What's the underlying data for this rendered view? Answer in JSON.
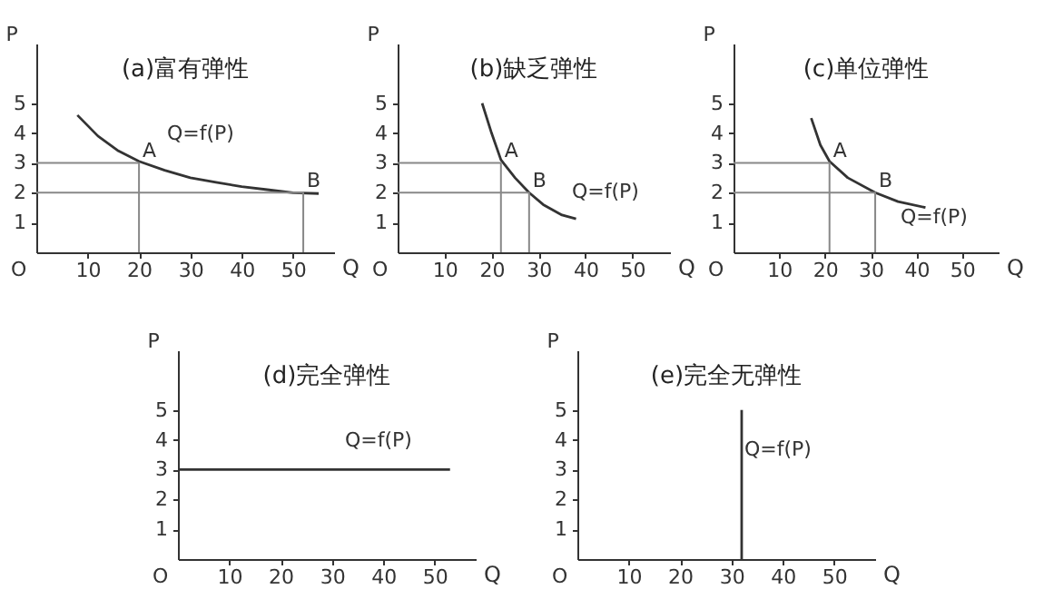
{
  "chart_data": [
    {
      "type": "line",
      "title": "(a)富有弹性",
      "xlabel": "Q",
      "ylabel": "P",
      "xlim": [
        0,
        58
      ],
      "ylim": [
        0,
        7
      ],
      "xticks": [
        10,
        20,
        30,
        40,
        50
      ],
      "yticks": [
        1,
        2,
        3,
        4,
        5
      ],
      "grid": false,
      "series": [
        {
          "color": "#333333",
          "x": [
            8,
            12,
            16,
            20,
            25,
            30,
            35,
            40,
            45,
            50,
            55
          ],
          "values": [
            4.6,
            3.9,
            3.4,
            3.05,
            2.75,
            2.5,
            2.35,
            2.2,
            2.1,
            2.0,
            1.97
          ]
        },
        {
          "color": "#888888",
          "x": [
            0,
            20,
            20
          ],
          "values": [
            3,
            3,
            0
          ]
        },
        {
          "color": "#888888",
          "x": [
            0,
            52,
            52
          ],
          "values": [
            2,
            2,
            0
          ]
        }
      ],
      "annotations": [
        {
          "text": "A",
          "x": 20,
          "y": 3
        },
        {
          "text": "B",
          "x": 52,
          "y": 2
        },
        "Q=f(P)",
        "O"
      ]
    },
    {
      "type": "line",
      "title": "(b)缺乏弹性",
      "xlabel": "Q",
      "ylabel": "P",
      "xlim": [
        0,
        58
      ],
      "ylim": [
        0,
        7
      ],
      "xticks": [
        10,
        20,
        30,
        40,
        50
      ],
      "yticks": [
        1,
        2,
        3,
        4,
        5
      ],
      "grid": false,
      "series": [
        {
          "color": "#333333",
          "x": [
            18,
            20,
            22,
            25,
            28,
            31,
            35,
            38
          ],
          "values": [
            5.0,
            4.0,
            3.1,
            2.5,
            2.0,
            1.6,
            1.25,
            1.12
          ]
        },
        {
          "color": "#888888",
          "x": [
            0,
            22,
            22
          ],
          "values": [
            3,
            3,
            0
          ]
        },
        {
          "color": "#888888",
          "x": [
            0,
            28,
            28
          ],
          "values": [
            2,
            2,
            0
          ]
        }
      ],
      "annotations": [
        {
          "text": "A",
          "x": 22,
          "y": 3
        },
        {
          "text": "B",
          "x": 28,
          "y": 2
        },
        "Q=f(P)",
        "O"
      ]
    },
    {
      "type": "line",
      "title": "(c)单位弹性",
      "xlabel": "Q",
      "ylabel": "P",
      "xlim": [
        0,
        58
      ],
      "ylim": [
        0,
        7
      ],
      "xticks": [
        10,
        20,
        30,
        40,
        50
      ],
      "yticks": [
        1,
        2,
        3,
        4,
        5
      ],
      "grid": false,
      "series": [
        {
          "color": "#333333",
          "x": [
            17,
            19,
            21,
            25,
            31,
            36,
            42
          ],
          "values": [
            4.5,
            3.6,
            3.05,
            2.5,
            2.0,
            1.7,
            1.5
          ]
        },
        {
          "color": "#888888",
          "x": [
            0,
            21,
            21
          ],
          "values": [
            3,
            3,
            0
          ]
        },
        {
          "color": "#888888",
          "x": [
            0,
            31,
            31
          ],
          "values": [
            2,
            2,
            0
          ]
        }
      ],
      "annotations": [
        {
          "text": "A",
          "x": 21,
          "y": 3
        },
        {
          "text": "B",
          "x": 31,
          "y": 2
        },
        "Q=f(P)",
        "O"
      ]
    },
    {
      "type": "line",
      "title": "(d)完全弹性",
      "xlabel": "Q",
      "ylabel": "P",
      "xlim": [
        0,
        58
      ],
      "ylim": [
        0,
        7
      ],
      "xticks": [
        10,
        20,
        30,
        40,
        50
      ],
      "yticks": [
        1,
        2,
        3,
        4,
        5
      ],
      "grid": false,
      "series": [
        {
          "color": "#333333",
          "x": [
            0,
            53
          ],
          "values": [
            3,
            3
          ]
        }
      ],
      "annotations": [
        "Q=f(P)",
        "O"
      ]
    },
    {
      "type": "line",
      "title": "(e)完全无弹性",
      "xlabel": "Q",
      "ylabel": "P",
      "xlim": [
        0,
        58
      ],
      "ylim": [
        0,
        7
      ],
      "xticks": [
        10,
        20,
        30,
        40,
        50
      ],
      "yticks": [
        1,
        2,
        3,
        4,
        5
      ],
      "grid": false,
      "series": [
        {
          "color": "#333333",
          "x": [
            32,
            32
          ],
          "values": [
            0,
            5
          ]
        }
      ],
      "annotations": [
        "Q=f(P)",
        "O"
      ]
    }
  ]
}
